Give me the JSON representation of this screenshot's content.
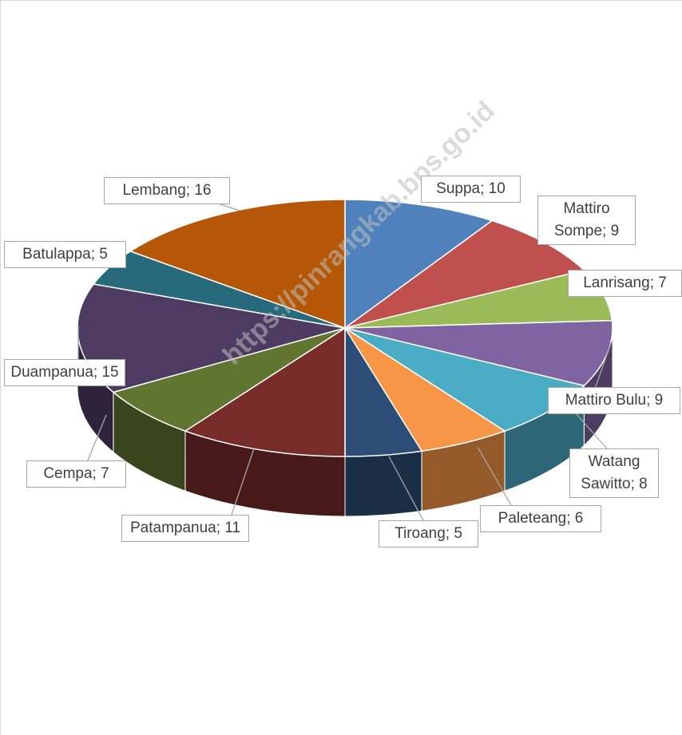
{
  "chart_data": {
    "type": "pie3d",
    "categories": [
      "Suppa",
      "Mattiro Sompe",
      "Lanrisang",
      "Mattiro Bulu",
      "Watang Sawitto",
      "Paleteang",
      "Tiroang",
      "Patampanua",
      "Cempa",
      "Duampanua",
      "Batulappa",
      "Lembang"
    ],
    "values": [
      10,
      9,
      7,
      9,
      8,
      6,
      5,
      11,
      7,
      15,
      5,
      16
    ],
    "value_labels": [
      "Suppa; 10",
      "Mattiro Sompe; 9",
      "Lanrisang; 7",
      "Mattiro Bulu; 9",
      "Watang Sawitto; 8",
      "Paleteang; 6",
      "Tiroang; 5",
      "Patampanua; 11",
      "Cempa; 7",
      "Duampanua; 15",
      "Batulappa; 5",
      "Lembang; 16"
    ],
    "colors": [
      "#4f81bd",
      "#c0504d",
      "#9bbb59",
      "#8064a2",
      "#4bacc6",
      "#f79646",
      "#2c4d75",
      "#772c2a",
      "#5f7530",
      "#4d3b62",
      "#276a7c",
      "#b65708"
    ],
    "watermark": "https://pinrangkab.bps.go.id"
  }
}
